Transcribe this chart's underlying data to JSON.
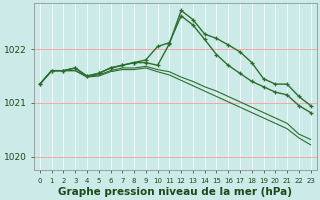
{
  "background_color": "#cceae8",
  "grid_color": "#f5ffff",
  "line_color": "#2d6e2d",
  "xlabel": "Graphe pression niveau de la mer (hPa)",
  "xlabel_fontsize": 7.5,
  "xlabel_color": "#1a4a1a",
  "ylabel_ticks": [
    1020,
    1021,
    1022
  ],
  "xlim": [
    -0.5,
    23.5
  ],
  "ylim": [
    1019.75,
    1022.85
  ],
  "xtick_fontsize": 5.0,
  "ytick_fontsize": 6.5,
  "series": [
    {
      "y": [
        1021.35,
        1021.6,
        1021.6,
        1021.65,
        1021.5,
        1021.55,
        1021.65,
        1021.7,
        1021.75,
        1021.75,
        1021.7,
        1022.1,
        1022.72,
        1022.55,
        1022.28,
        1022.2,
        1022.08,
        1021.95,
        1021.75,
        1021.45,
        1021.35,
        1021.35,
        1021.12,
        1020.95
      ],
      "marker": true,
      "lw": 1.0
    },
    {
      "y": [
        1021.35,
        1021.6,
        1021.6,
        1021.65,
        1021.5,
        1021.55,
        1021.65,
        1021.7,
        1021.75,
        1021.8,
        1022.05,
        1022.12,
        1022.62,
        1022.45,
        1022.18,
        1021.9,
        1021.7,
        1021.55,
        1021.4,
        1021.3,
        1021.2,
        1021.15,
        1020.95,
        1020.82
      ],
      "marker": true,
      "lw": 1.0
    },
    {
      "y": [
        1021.35,
        1021.6,
        1021.6,
        1021.6,
        1021.5,
        1021.52,
        1021.6,
        1021.65,
        1021.65,
        1021.68,
        1021.62,
        1021.58,
        1021.48,
        1021.4,
        1021.3,
        1021.22,
        1021.12,
        1021.02,
        1020.92,
        1020.82,
        1020.72,
        1020.62,
        1020.42,
        1020.32
      ],
      "marker": false,
      "lw": 0.8
    },
    {
      "y": [
        1021.35,
        1021.6,
        1021.6,
        1021.6,
        1021.48,
        1021.5,
        1021.58,
        1021.62,
        1021.62,
        1021.65,
        1021.58,
        1021.52,
        1021.42,
        1021.32,
        1021.22,
        1021.12,
        1021.02,
        1020.92,
        1020.82,
        1020.72,
        1020.62,
        1020.52,
        1020.35,
        1020.22
      ],
      "marker": false,
      "lw": 0.8
    }
  ]
}
